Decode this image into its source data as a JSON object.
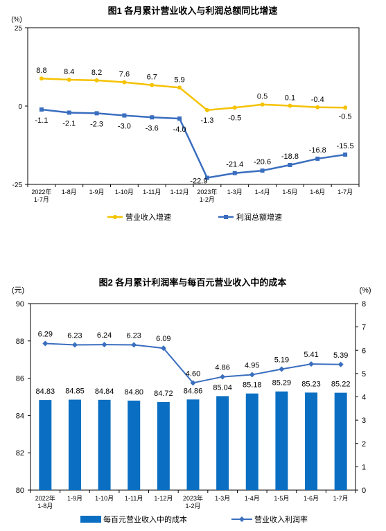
{
  "chart_data": [
    {
      "type": "line",
      "title": "图1  各月累计营业收入与利润总额同比增速",
      "y_unit": "(%)",
      "ylim": [
        -25,
        25
      ],
      "yticks": [
        "25",
        "0",
        "-25"
      ],
      "grid": false,
      "categories": [
        "2022年\n1-7月",
        "1-8月",
        "1-9月",
        "1-10月",
        "1-11月",
        "1-12月",
        "2023年\n1-2月",
        "1-3月",
        "1-4月",
        "1-5月",
        "1-6月",
        "1-7月"
      ],
      "series": [
        {
          "name": "营业收入增速",
          "color": "#F5C200",
          "marker": "circle",
          "values": [
            8.8,
            8.4,
            8.2,
            7.6,
            6.7,
            5.9,
            -1.3,
            -0.5,
            0.5,
            0.1,
            -0.4,
            -0.5
          ],
          "labels": [
            "8.8",
            "8.4",
            "8.2",
            "7.6",
            "6.7",
            "5.9",
            "-1.3",
            "-0.5",
            "0.5",
            "0.1",
            "-0.4",
            "-0.5"
          ]
        },
        {
          "name": "利润总额增速",
          "color": "#3A6EBF",
          "marker": "square",
          "values": [
            -1.1,
            -2.1,
            -2.3,
            -3.0,
            -3.6,
            -4.0,
            -22.9,
            -21.4,
            -20.6,
            -18.8,
            -16.8,
            -15.5
          ],
          "labels": [
            "-1.1",
            "-2.1",
            "-2.3",
            "-3.0",
            "-3.6",
            "-4.0",
            "-22.9",
            "-21.4",
            "-20.6",
            "-18.8",
            "-16.8",
            "-15.5"
          ]
        }
      ],
      "legend_position": "bottom"
    },
    {
      "type": "bar",
      "title": "图2  各月累计利润率与每百元营业收入中的成本",
      "y_left_unit": "(元)",
      "y_right_unit": "(%)",
      "ylim_left": [
        80,
        90
      ],
      "yticks_left": [
        "80",
        "82",
        "84",
        "86",
        "88",
        "90"
      ],
      "ylim_right": [
        0,
        8
      ],
      "yticks_right": [
        "0",
        "1",
        "2",
        "3",
        "4",
        "5",
        "6",
        "7",
        "8"
      ],
      "grid": false,
      "categories": [
        "2022年\n1-8月",
        "1-9月",
        "1-10月",
        "1-11月",
        "1-12月",
        "2023年\n1-2月",
        "1-3月",
        "1-4月",
        "1-5月",
        "1-6月",
        "1-7月"
      ],
      "series": [
        {
          "name": "每百元营业收入中的成本",
          "kind": "bar",
          "axis": "left",
          "color": "#0A6FC2",
          "values": [
            84.83,
            84.85,
            84.84,
            84.8,
            84.72,
            84.86,
            85.04,
            85.18,
            85.29,
            85.23,
            85.22
          ],
          "labels": [
            "84.83",
            "84.85",
            "84.84",
            "84.80",
            "84.72",
            "84.86",
            "85.04",
            "85.18",
            "85.29",
            "85.23",
            "85.22"
          ]
        },
        {
          "name": "营业收入利润率",
          "kind": "line",
          "axis": "right",
          "color": "#3A6EBF",
          "marker": "diamond",
          "values": [
            6.29,
            6.23,
            6.24,
            6.23,
            6.09,
            4.6,
            4.86,
            4.95,
            5.19,
            5.41,
            5.39
          ],
          "labels": [
            "6.29",
            "6.23",
            "6.24",
            "6.23",
            "6.09",
            "4.60",
            "4.86",
            "4.95",
            "5.19",
            "5.41",
            "5.39"
          ]
        }
      ],
      "legend_position": "bottom"
    }
  ]
}
